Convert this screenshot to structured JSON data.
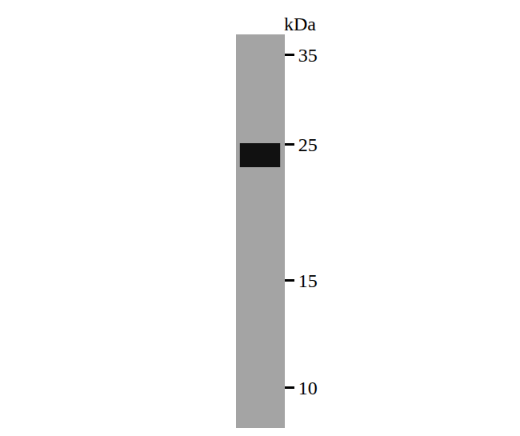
{
  "chart_data": {
    "type": "blot",
    "y_label": "kDa",
    "log": "y",
    "ylim": [
      8.6,
      37.8
    ],
    "yticks": [
      10,
      15,
      25,
      35
    ],
    "values": [
      24
    ],
    "color": "#111111",
    "grid": false,
    "tick_labels": "y"
  }
}
